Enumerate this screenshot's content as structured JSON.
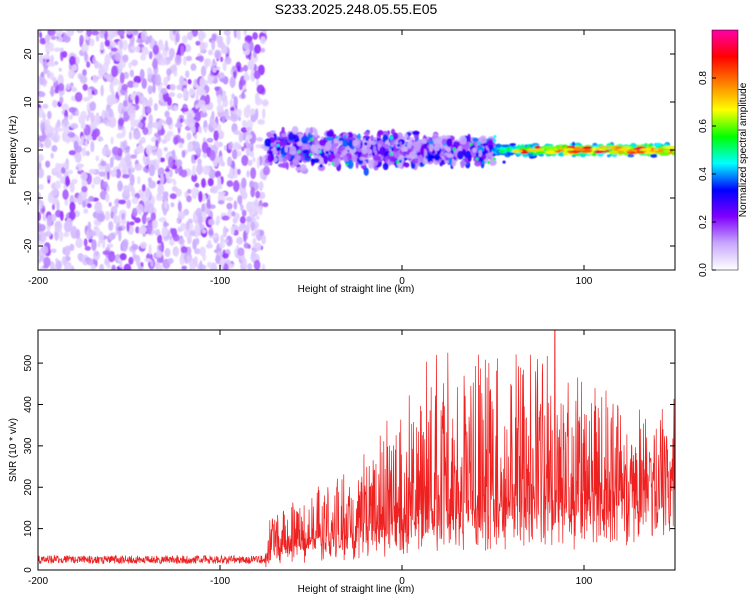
{
  "title": "S233.2025.248.05.55.E05",
  "chart_data": [
    {
      "type": "heatmap",
      "xlabel": "Height of straight line (km)",
      "ylabel": "Frequency (Hz)",
      "xlim": [
        -200,
        150
      ],
      "ylim": [
        -25,
        25
      ],
      "xticks": [
        -200,
        -100,
        0,
        100
      ],
      "xtick_labels": [
        "-200",
        "-100",
        "0",
        "100"
      ],
      "yticks": [
        -20,
        -10,
        0,
        10,
        20
      ],
      "ytick_labels": [
        "-20",
        "-10",
        "0",
        "10",
        "20"
      ],
      "colorbar": {
        "label": "Normalized spectral amplitude",
        "range": [
          0,
          1
        ],
        "ticks": [
          0.0,
          0.2,
          0.4,
          0.6,
          0.8
        ],
        "tick_labels": [
          "0.0",
          "0.2",
          "0.4",
          "0.6",
          "0.8"
        ],
        "colormap": [
          "#ffffff",
          "#c8a8ff",
          "#8000ff",
          "#0000ff",
          "#00ffff",
          "#00ff00",
          "#ffff00",
          "#ff8000",
          "#ff0000",
          "#ff00aa"
        ]
      },
      "regions": [
        {
          "x_range": [
            -200,
            -75
          ],
          "f_half_width": 25,
          "amplitude_range": [
            0.05,
            0.2
          ],
          "description_key": "broadband noise"
        },
        {
          "x_range": [
            -75,
            50
          ],
          "f_half_width": 6,
          "amplitude_range": [
            0.1,
            0.4
          ]
        },
        {
          "x_range": [
            50,
            150
          ],
          "f_half_width": 1.5,
          "amplitude_range": [
            0.3,
            0.95
          ]
        }
      ]
    },
    {
      "type": "line",
      "xlabel": "Height of straight line (km)",
      "ylabel": "SNR (10 * v/v)",
      "xlim": [
        -200,
        150
      ],
      "ylim": [
        0,
        580
      ],
      "xticks": [
        -200,
        -100,
        0,
        100
      ],
      "xtick_labels": [
        "-200",
        "-100",
        "0",
        "100"
      ],
      "yticks": [
        0,
        100,
        200,
        300,
        400,
        500
      ],
      "ytick_labels": [
        "0",
        "100",
        "200",
        "300",
        "400",
        "500"
      ],
      "color": "#ee2020",
      "envelope": [
        {
          "x": -200,
          "base": 15,
          "peak": 35
        },
        {
          "x": -75,
          "base": 15,
          "peak": 35
        },
        {
          "x": -72,
          "base": 40,
          "peak": 130
        },
        {
          "x": -50,
          "base": 60,
          "peak": 170
        },
        {
          "x": -20,
          "base": 90,
          "peak": 260
        },
        {
          "x": 0,
          "base": 110,
          "peak": 380
        },
        {
          "x": 20,
          "base": 130,
          "peak": 480
        },
        {
          "x": 50,
          "base": 140,
          "peak": 480
        },
        {
          "x": 80,
          "base": 150,
          "peak": 520
        },
        {
          "x": 110,
          "base": 170,
          "peak": 380
        },
        {
          "x": 150,
          "base": 200,
          "peak": 320
        }
      ],
      "max_point": {
        "x": 84,
        "y": 578
      }
    }
  ]
}
